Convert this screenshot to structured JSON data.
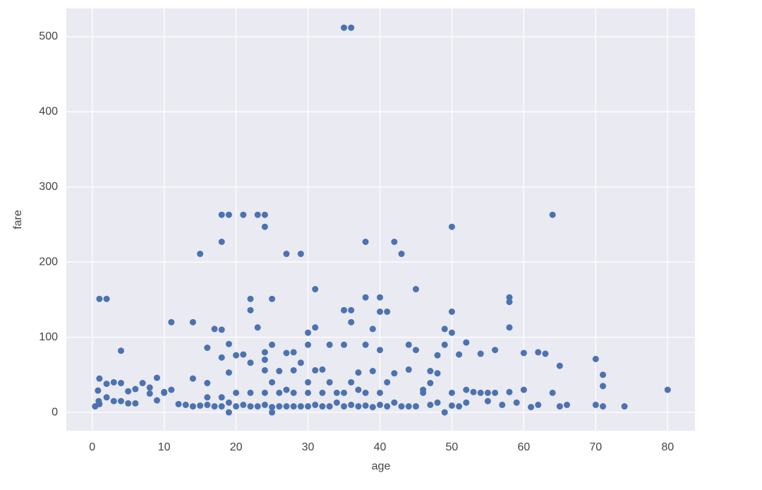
{
  "chart_data": {
    "type": "scatter",
    "x_label": "age",
    "y_label": "fare",
    "color": "#4c72b0",
    "grid": true,
    "xlim": [
      -3.6,
      83.8
    ],
    "ylim": [
      -24.4,
      537.6
    ],
    "xticks": [
      0,
      10,
      20,
      30,
      40,
      50,
      60,
      70,
      80
    ],
    "yticks": [
      0,
      100,
      200,
      300,
      400,
      500
    ],
    "x": [
      35,
      36,
      18,
      19,
      21,
      23,
      24,
      64,
      24,
      50,
      18,
      38,
      42,
      15,
      27,
      29,
      43,
      31,
      45,
      1,
      2,
      22,
      25,
      58,
      58,
      38,
      40,
      22,
      35,
      36,
      40,
      41,
      50,
      11,
      14,
      36,
      17,
      18,
      23,
      39,
      58,
      31,
      30,
      49,
      50,
      4,
      16,
      19,
      21,
      24,
      25,
      27,
      29,
      30,
      33,
      35,
      38,
      40,
      44,
      45,
      48,
      49,
      51,
      52,
      54,
      56,
      60,
      62,
      63,
      65,
      70,
      71,
      71,
      70,
      71,
      74,
      80,
      66,
      65,
      64,
      61,
      62,
      60,
      59,
      58,
      55,
      52,
      50,
      48,
      47,
      46,
      44,
      42,
      41,
      39,
      37,
      34,
      32,
      31,
      28,
      26,
      24,
      22,
      20,
      19,
      18,
      16,
      14,
      12,
      11,
      10,
      9,
      8,
      7,
      6,
      5,
      4,
      3,
      2,
      1,
      0.9,
      0.4,
      0.8,
      1,
      2,
      3,
      4,
      5,
      6,
      8,
      9,
      10,
      13,
      14,
      15,
      16,
      17,
      18,
      19,
      20,
      21,
      22,
      23,
      24,
      25,
      26,
      27,
      28,
      29,
      30,
      31,
      32,
      33,
      34,
      35,
      36,
      37,
      38,
      39,
      40,
      41,
      42,
      43,
      44,
      45,
      46,
      47,
      48,
      49,
      50,
      51,
      52,
      53,
      54,
      55,
      56,
      57,
      19,
      25,
      16,
      18,
      20,
      22,
      24,
      26,
      28,
      30,
      32,
      35,
      38,
      40,
      24,
      28,
      25,
      30,
      33,
      36,
      47,
      27,
      37
    ],
    "values": [
      512,
      512,
      263,
      263,
      263,
      263,
      263,
      263,
      247,
      247,
      227,
      227,
      227,
      211,
      211,
      211,
      211,
      164,
      164,
      151,
      151,
      151,
      151,
      153,
      147,
      153,
      153,
      136,
      136,
      136,
      134,
      134,
      134,
      120,
      120,
      120,
      111,
      110,
      113,
      111,
      113,
      113,
      106,
      111,
      106,
      82,
      86,
      91,
      77,
      80,
      90,
      79,
      66,
      90,
      90,
      90,
      90,
      83,
      90,
      83,
      76,
      90,
      77,
      93,
      78,
      83,
      79,
      80,
      78,
      62,
      71,
      50,
      35,
      10,
      8,
      8,
      30,
      10,
      8,
      26,
      7,
      10,
      30,
      13,
      27,
      15,
      30,
      26,
      52,
      39,
      30,
      57,
      52,
      40,
      55,
      53,
      26,
      57,
      56,
      56,
      55,
      56,
      66,
      76,
      53,
      73,
      39,
      45,
      11,
      30,
      26,
      46,
      33,
      39,
      31,
      28,
      39,
      40,
      38,
      45,
      15,
      8,
      29,
      11,
      20,
      15,
      15,
      12,
      12,
      25,
      16,
      27,
      10,
      8,
      9,
      10,
      8,
      8,
      13,
      8,
      10,
      8,
      8,
      10,
      7,
      8,
      8,
      8,
      8,
      8,
      10,
      8,
      8,
      13,
      8,
      10,
      8,
      9,
      7,
      10,
      8,
      13,
      8,
      8,
      8,
      26,
      10,
      13,
      0,
      9,
      8,
      13,
      27,
      26,
      26,
      26,
      10,
      0,
      0,
      20,
      20,
      26,
      26,
      26,
      26,
      26,
      26,
      26,
      26,
      26,
      26,
      70,
      80,
      40,
      40,
      40,
      40,
      55,
      30,
      30
    ]
  }
}
